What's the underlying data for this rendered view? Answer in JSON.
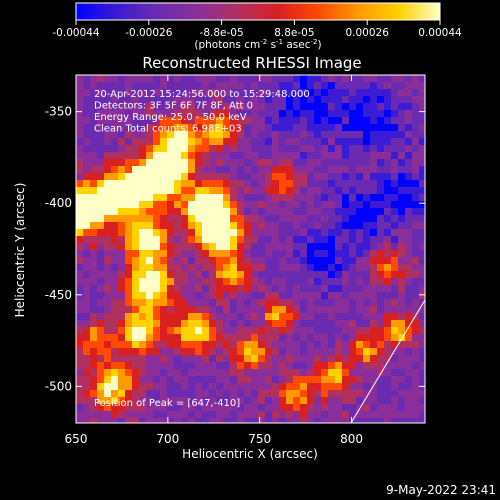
{
  "colorbar": {
    "ticks": [
      "-0.00044",
      "-0.00026",
      "-8.8e-05",
      "8.8e-05",
      "0.00026",
      "0.00044"
    ],
    "unit_prefix": "(photons cm",
    "unit_sup1": "-2",
    "unit_mid": " s",
    "unit_sup2": "-1",
    "unit_mid2": " asec",
    "unit_sup3": "-2",
    "unit_suffix": ")",
    "colors": [
      "#0000ff",
      "#3b1bd4",
      "#6a2bb0",
      "#8a2f9a",
      "#b03060",
      "#d82020",
      "#ff4a00",
      "#ff9a00",
      "#ffd200",
      "#ffffc8"
    ]
  },
  "chart_data": {
    "type": "heatmap",
    "title": "Reconstructed RHESSI Image",
    "xlabel": "Heliocentric X (arcsec)",
    "ylabel": "Heliocentric Y (arcsec)",
    "xlim": [
      650,
      840
    ],
    "ylim": [
      -520,
      -330
    ],
    "x_ticks": [
      650,
      700,
      750,
      800
    ],
    "y_ticks": [
      -350,
      -400,
      -450,
      -500
    ],
    "value_range": [
      -0.00044,
      0.00044
    ],
    "peak_position": [
      647,
      -410
    ],
    "annotations": [
      "20-Apr-2012 15:24:56.000 to 15:29:48.000",
      "Detectors: 3F 5F 6F 7F 8F, Att 0",
      "Energy Range: 25.0 - 50.0 keV",
      "Clean     Total counts: 6.98E+03"
    ],
    "peak_label": "Position of Peak = [647,-410]"
  },
  "footer": {
    "timestamp": "9-May-2022 23:41"
  }
}
